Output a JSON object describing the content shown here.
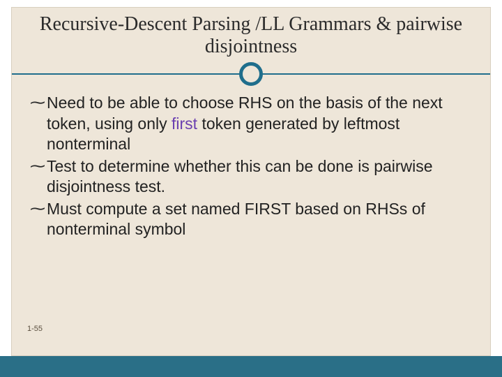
{
  "slide": {
    "title": "Recursive-Descent Parsing /LL Grammars & pairwise disjointness",
    "title_fontsize": 28,
    "title_color": "#2a2a2a",
    "rule_color": "#1f6e8c",
    "ring_color": "#1f6e8c",
    "ring_thickness": 5,
    "content_bg": "#eee6d9",
    "content_border": "#d8cfbf",
    "bullet_glyph": "་",
    "bullets": [
      {
        "pre": "Need to be able to choose RHS on the basis of the next token, using only ",
        "em": "first",
        "post": " token generated by leftmost nonterminal"
      },
      {
        "pre": "Test to determine whether this can be done is pairwise disjointness test.",
        "em": "",
        "post": ""
      },
      {
        "pre": "Must compute a set named FIRST based on RHSs of nonterminal symbol",
        "em": "",
        "post": ""
      }
    ],
    "bullet_fontsize": 23,
    "bullet_color": "#222222",
    "em_color": "#6a3fb0",
    "slide_number": "1-55",
    "slide_number_color": "#5a4f3f",
    "footer_color": "#2a6f87"
  }
}
